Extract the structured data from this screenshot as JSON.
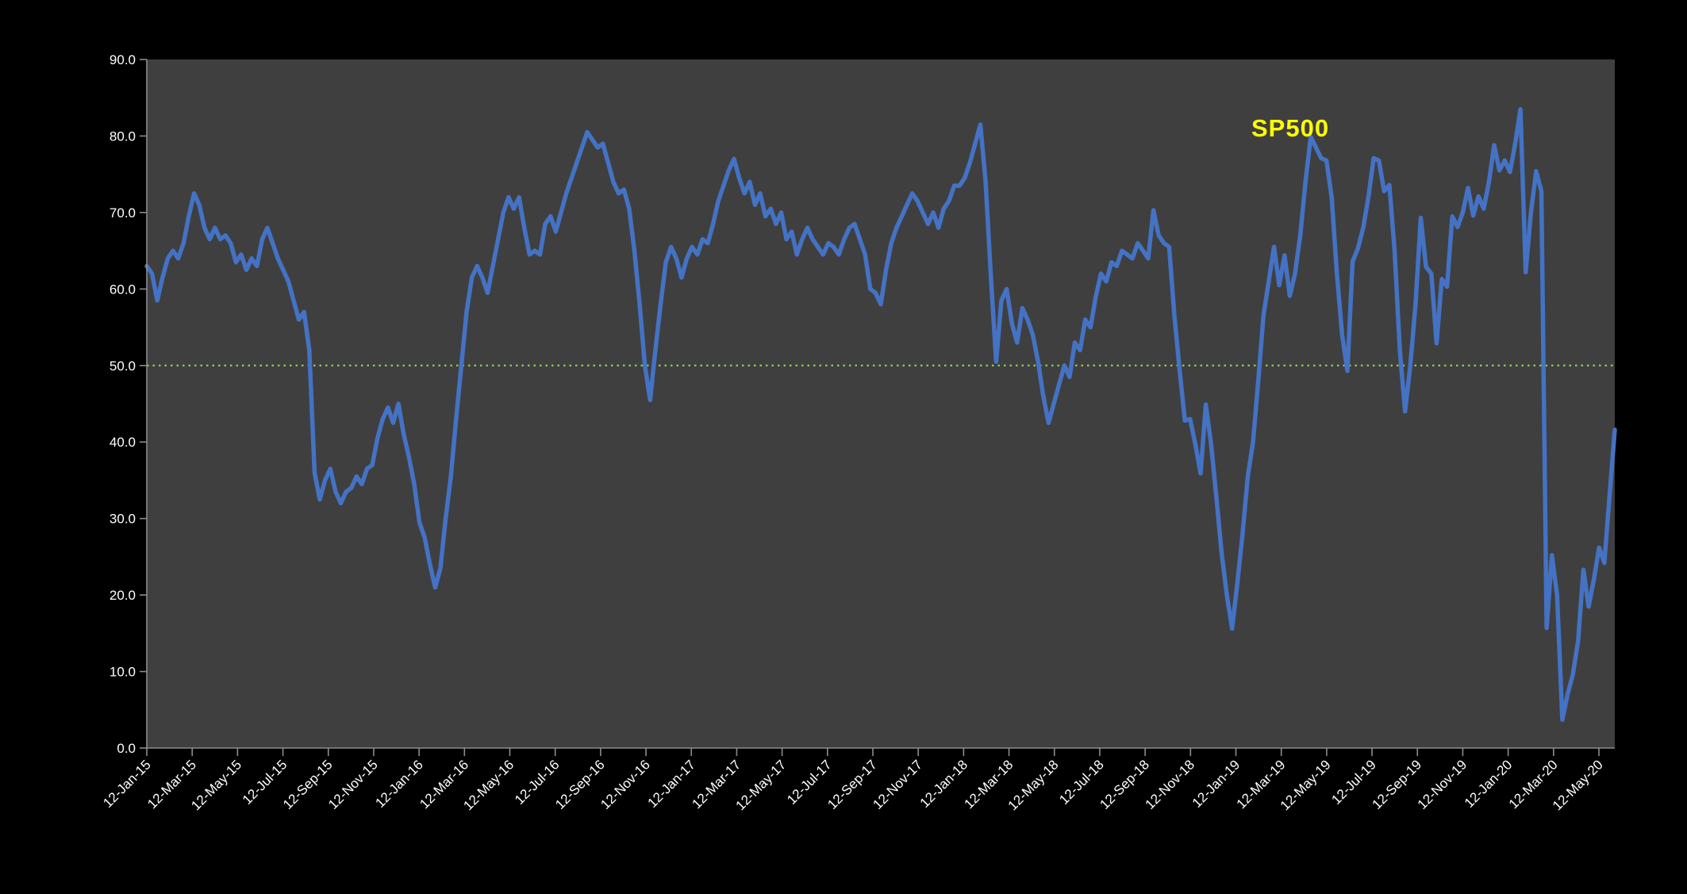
{
  "chart_data": {
    "type": "line",
    "title": "SP500",
    "series_label": "SP500",
    "layout": {
      "page_bg": "#000000",
      "plot_bg": "#3F3F3F",
      "axis_color": "#8C8C8C",
      "label_color": "#FFFFFF",
      "series_label_color": "#FFFF00",
      "grid": false,
      "legend_position": "inside-top-right",
      "x_label_rotation_deg": -45
    },
    "y_axis": {
      "min": 0,
      "max": 90,
      "step": 10,
      "tick_labels": [
        "0.0",
        "10.0",
        "20.0",
        "30.0",
        "40.0",
        "50.0",
        "60.0",
        "70.0",
        "80.0",
        "90.0"
      ]
    },
    "x_axis": {
      "tick_labels": [
        "12-Jan-15",
        "12-Mar-15",
        "12-May-15",
        "12-Jul-15",
        "12-Sep-15",
        "12-Nov-15",
        "12-Jan-16",
        "12-Mar-16",
        "12-May-16",
        "12-Jul-16",
        "12-Sep-16",
        "12-Nov-16",
        "12-Jan-17",
        "12-Mar-17",
        "12-May-17",
        "12-Jul-17",
        "12-Sep-17",
        "12-Nov-17",
        "12-Jan-18",
        "12-Mar-18",
        "12-May-18",
        "12-Jul-18",
        "12-Sep-18",
        "12-Nov-18",
        "12-Jan-19",
        "12-Mar-19",
        "12-May-19",
        "12-Jul-19",
        "12-Sep-19",
        "12-Nov-19",
        "12-Jan-20",
        "12-Mar-20",
        "12-May-20"
      ],
      "interval": "2 months, weekly data points"
    },
    "reference_line": {
      "value": 50,
      "color": "#92D050",
      "style": "dotted"
    },
    "series": [
      {
        "name": "SP500",
        "color": "#4472C4",
        "stroke_width": 5.5,
        "values": [
          63,
          62,
          58.5,
          61.5,
          64,
          65,
          64,
          66,
          69.5,
          72.5,
          71,
          68,
          66.5,
          68,
          66.5,
          67,
          66,
          63.5,
          64.5,
          62.5,
          64,
          63,
          66.5,
          68,
          66,
          64,
          62.5,
          61,
          58.5,
          56,
          57,
          52,
          36,
          32.5,
          35,
          36.5,
          33.5,
          32,
          33.5,
          34,
          35.5,
          34.5,
          36.5,
          37,
          40.5,
          43,
          44.5,
          42.5,
          45,
          41,
          38,
          34.5,
          29.5,
          27.5,
          24,
          21,
          23.5,
          30,
          35.5,
          43,
          50,
          57,
          61.5,
          63,
          61.5,
          59.5,
          63,
          66.5,
          70,
          72,
          70.5,
          72,
          68,
          64.5,
          65,
          64.5,
          68.5,
          69.5,
          67.5,
          70,
          72.5,
          74.5,
          76.5,
          78.5,
          80.5,
          79.5,
          78.5,
          79,
          76.5,
          74,
          72.5,
          73,
          70.5,
          65,
          58,
          50,
          45.5,
          52,
          58,
          63.5,
          65.5,
          64,
          61.5,
          64,
          65.5,
          64.5,
          66.5,
          66,
          68.5,
          71.5,
          73.5,
          75.5,
          77,
          74.5,
          72.5,
          74,
          71,
          72.5,
          69.5,
          70.5,
          68.5,
          70,
          66.5,
          67.5,
          64.5,
          66.5,
          68,
          66.5,
          65.5,
          64.5,
          66,
          65.5,
          64.5,
          66.5,
          68,
          68.5,
          66.5,
          64.5,
          60,
          59.5,
          58,
          62.5,
          66,
          68,
          69.5,
          71,
          72.5,
          71.5,
          70,
          68.5,
          70,
          68,
          70.5,
          71.5,
          73.5,
          73.5,
          74.5,
          76.5,
          79,
          81.5,
          74,
          61.5,
          50.5,
          58.5,
          60,
          55.5,
          53,
          57.5,
          56,
          54,
          50.5,
          46,
          42.5,
          45,
          47.5,
          50,
          48.5,
          53,
          52,
          56,
          55,
          59,
          62,
          61,
          63.5,
          63,
          65,
          64.5,
          64,
          66,
          65,
          64,
          70.3,
          67,
          66,
          65.5,
          56.5,
          49.4,
          42.8,
          43,
          39.7,
          35.9,
          44.9,
          39.7,
          32.8,
          25.5,
          20,
          15.6,
          21.5,
          28,
          35.5,
          40,
          48,
          56.6,
          61,
          65.5,
          60.5,
          64.4,
          59.1,
          62,
          67,
          74,
          79.9,
          78.5,
          77.1,
          76.8,
          72,
          62,
          54,
          49.3,
          63.6,
          65.3,
          68,
          72,
          77.1,
          76.8,
          72.8,
          73.6,
          65,
          52,
          44,
          50,
          58,
          69.3,
          62.9,
          62,
          52.9,
          61.3,
          60.3,
          69.5,
          68.1,
          70,
          73.2,
          69.6,
          72.1,
          70.5,
          74,
          78.8,
          75.5,
          76.8,
          75.3,
          79,
          83.5,
          62.2,
          70,
          75.4,
          72.8,
          15.7,
          25.2,
          20,
          3.7,
          7,
          9.6,
          14,
          23.3,
          18.5,
          22,
          26.2,
          24.2,
          33,
          41.6
        ]
      }
    ]
  }
}
